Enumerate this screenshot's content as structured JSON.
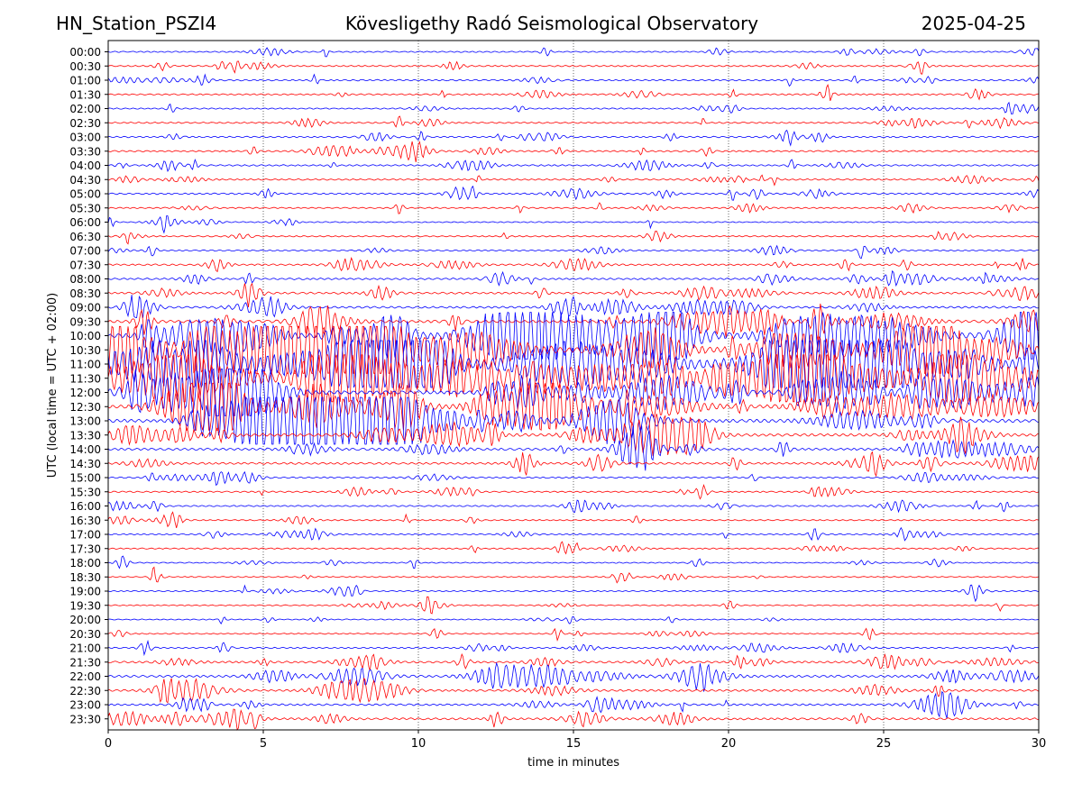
{
  "header": {
    "station": "HN_Station_PSZI4",
    "observatory": "Kövesligethy Radó Seismological Observatory",
    "date": "2025-04-25"
  },
  "chart_data": {
    "type": "line",
    "title": "Kövesligethy Radó Seismological Observatory",
    "xlabel": "time in minutes",
    "ylabel": "UTC (local time = UTC + 02:00)",
    "xlim": [
      0,
      30
    ],
    "xticks": [
      0,
      5,
      10,
      15,
      20,
      25,
      30
    ],
    "grid": "vertical dotted lines at x = 5, 10, 15, 20, 25",
    "colors": {
      "even_rows": "#0000ff",
      "odd_rows": "#ff0000"
    },
    "rows": [
      {
        "label": "00:00",
        "activity": 0.15
      },
      {
        "label": "00:30",
        "activity": 0.2
      },
      {
        "label": "01:00",
        "activity": 0.25
      },
      {
        "label": "01:30",
        "activity": 0.2
      },
      {
        "label": "02:00",
        "activity": 0.15
      },
      {
        "label": "02:30",
        "activity": 0.2
      },
      {
        "label": "03:00",
        "activity": 0.25
      },
      {
        "label": "03:30",
        "activity": 0.25
      },
      {
        "label": "04:00",
        "activity": 0.25
      },
      {
        "label": "04:30",
        "activity": 0.25
      },
      {
        "label": "05:00",
        "activity": 0.3
      },
      {
        "label": "05:30",
        "activity": 0.15
      },
      {
        "label": "06:00",
        "activity": 0.1
      },
      {
        "label": "06:30",
        "activity": 0.15
      },
      {
        "label": "07:00",
        "activity": 0.2
      },
      {
        "label": "07:30",
        "activity": 0.3
      },
      {
        "label": "08:00",
        "activity": 0.35
      },
      {
        "label": "08:30",
        "activity": 0.45
      },
      {
        "label": "09:00",
        "activity": 0.5
      },
      {
        "label": "09:30",
        "activity": 0.8
      },
      {
        "label": "10:00",
        "activity": 1.3
      },
      {
        "label": "10:30",
        "activity": 1.5
      },
      {
        "label": "11:00",
        "activity": 1.5
      },
      {
        "label": "11:30",
        "activity": 1.4
      },
      {
        "label": "12:00",
        "activity": 1.2
      },
      {
        "label": "12:30",
        "activity": 1.2
      },
      {
        "label": "13:00",
        "activity": 1.1
      },
      {
        "label": "13:30",
        "activity": 0.8
      },
      {
        "label": "14:00",
        "activity": 0.6
      },
      {
        "label": "14:30",
        "activity": 0.5
      },
      {
        "label": "15:00",
        "activity": 0.25
      },
      {
        "label": "15:30",
        "activity": 0.2
      },
      {
        "label": "16:00",
        "activity": 0.2
      },
      {
        "label": "16:30",
        "activity": 0.15
      },
      {
        "label": "17:00",
        "activity": 0.2
      },
      {
        "label": "17:30",
        "activity": 0.15
      },
      {
        "label": "18:00",
        "activity": 0.1
      },
      {
        "label": "18:30",
        "activity": 0.08
      },
      {
        "label": "19:00",
        "activity": 0.1
      },
      {
        "label": "19:30",
        "activity": 0.08
      },
      {
        "label": "20:00",
        "activity": 0.08
      },
      {
        "label": "20:30",
        "activity": 0.1
      },
      {
        "label": "21:00",
        "activity": 0.2
      },
      {
        "label": "21:30",
        "activity": 0.45
      },
      {
        "label": "22:00",
        "activity": 0.6
      },
      {
        "label": "22:30",
        "activity": 0.5
      },
      {
        "label": "23:00",
        "activity": 0.45
      },
      {
        "label": "23:30",
        "activity": 0.5
      }
    ]
  }
}
